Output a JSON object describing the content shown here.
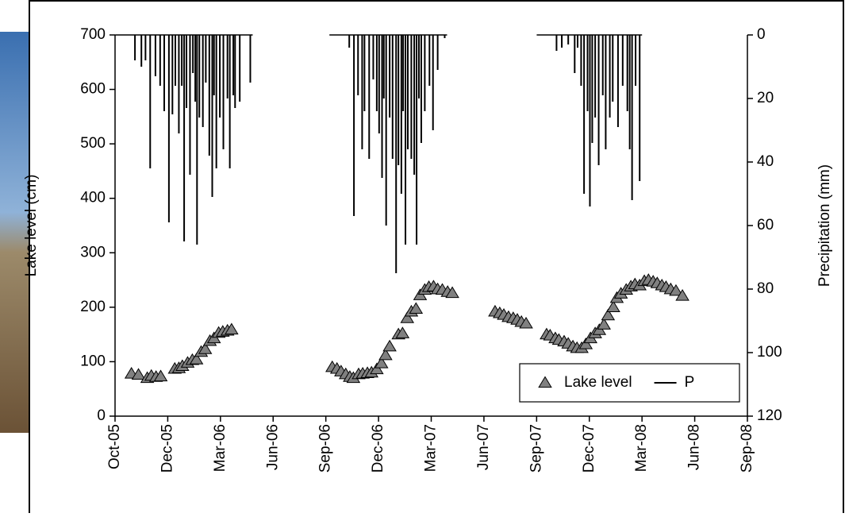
{
  "chart_data": {
    "type": "line",
    "y_label": "Lake level (cm)",
    "y2_label": "Precipitation (mm)",
    "xlim": [
      38626,
      39706
    ],
    "xticks": [
      {
        "value": 38626,
        "label": "Oct-05"
      },
      {
        "value": 38716,
        "label": "Dec-05"
      },
      {
        "value": 38806,
        "label": "Mar-06"
      },
      {
        "value": 38896,
        "label": "Jun-06"
      },
      {
        "value": 38986,
        "label": "Sep-06"
      },
      {
        "value": 39076,
        "label": "Dec-06"
      },
      {
        "value": 39166,
        "label": "Mar-07"
      },
      {
        "value": 39256,
        "label": "Jun-07"
      },
      {
        "value": 39346,
        "label": "Sep-07"
      },
      {
        "value": 39436,
        "label": "Dec-07"
      },
      {
        "value": 39526,
        "label": "Mar-08"
      },
      {
        "value": 39616,
        "label": "Jun-08"
      },
      {
        "value": 39706,
        "label": "Sep-08"
      }
    ],
    "ylim": [
      0,
      700
    ],
    "yticks": [
      0,
      100,
      200,
      300,
      400,
      500,
      600,
      700
    ],
    "y2lim": [
      120,
      0
    ],
    "y2ticks": [
      0,
      20,
      40,
      60,
      80,
      100,
      120
    ],
    "legend": "lower right",
    "series": [
      {
        "name": "Lake level",
        "type": "scatter",
        "color": "#808080",
        "x": [
          38654,
          38666,
          38681,
          38688,
          38696,
          38704,
          38728,
          38735,
          38741,
          38750,
          38758,
          38765,
          38773,
          38780,
          38788,
          38795,
          38803,
          38810,
          38818,
          38825,
          38997,
          39005,
          39012,
          39020,
          39027,
          39033,
          39042,
          39049,
          39057,
          39064,
          39073,
          39081,
          39088,
          39095,
          39110,
          39117,
          39125,
          39132,
          39140,
          39147,
          39155,
          39162,
          39170,
          39177,
          39185,
          39194,
          39202,
          39275,
          39283,
          39290,
          39298,
          39306,
          39313,
          39320,
          39328,
          39363,
          39369,
          39378,
          39384,
          39393,
          39400,
          39408,
          39415,
          39423,
          39430,
          39438,
          39446,
          39453,
          39461,
          39468,
          39477,
          39483,
          39490,
          39499,
          39507,
          39514,
          39522,
          39530,
          39537,
          39545,
          39552,
          39560,
          39567,
          39575,
          39584,
          39595
        ],
        "values": [
          78,
          76,
          70,
          74,
          72,
          73,
          87,
          88,
          92,
          98,
          103,
          104,
          118,
          123,
          138,
          143,
          153,
          155,
          157,
          159,
          90,
          87,
          82,
          77,
          72,
          70,
          77,
          78,
          79,
          80,
          86,
          97,
          112,
          128,
          150,
          152,
          180,
          192,
          197,
          222,
          232,
          237,
          238,
          233,
          232,
          228,
          226,
          192,
          189,
          186,
          182,
          180,
          177,
          173,
          170,
          150,
          148,
          143,
          140,
          137,
          133,
          128,
          125,
          125,
          132,
          143,
          152,
          158,
          168,
          185,
          200,
          217,
          225,
          232,
          238,
          242,
          240,
          248,
          250,
          247,
          244,
          240,
          237,
          233,
          230,
          221
        ]
      },
      {
        "name": "P",
        "type": "spikes",
        "axis": "y2",
        "color": "#000000",
        "x": [
          38660,
          38671,
          38678,
          38686,
          38695,
          38703,
          38710,
          38718,
          38724,
          38729,
          38735,
          38740,
          38744,
          38748,
          38754,
          38759,
          38763,
          38766,
          38770,
          38776,
          38781,
          38787,
          38792,
          38795,
          38799,
          38805,
          38811,
          38818,
          38822,
          38828,
          38831,
          38839,
          38857,
          39026,
          39034,
          39041,
          39048,
          39052,
          39060,
          39067,
          39073,
          39077,
          39082,
          39085,
          39089,
          39095,
          39100,
          39106,
          39110,
          39115,
          39118,
          39122,
          39126,
          39132,
          39137,
          39141,
          39145,
          39149,
          39155,
          39163,
          39169,
          39177,
          39189,
          39380,
          39389,
          39400,
          39411,
          39416,
          39422,
          39427,
          39433,
          39437,
          39441,
          39446,
          39452,
          39459,
          39464,
          39471,
          39476,
          39485,
          39493,
          39501,
          39505,
          39509,
          39515,
          39522
        ],
        "values": [
          8,
          10,
          8,
          42,
          13,
          16,
          24,
          59,
          25,
          16,
          31,
          16,
          65,
          23,
          44,
          12,
          21,
          66,
          26,
          29,
          15,
          38,
          51,
          19,
          42,
          26,
          36,
          20,
          42,
          19,
          23,
          21,
          15,
          4,
          57,
          19,
          36,
          24,
          39,
          14,
          24,
          31,
          45,
          20,
          60,
          26,
          39,
          75,
          41,
          50,
          24,
          66,
          36,
          39,
          44,
          66,
          20,
          34,
          24,
          16,
          30,
          11,
          1,
          5,
          4,
          3,
          12,
          4,
          16,
          50,
          24,
          54,
          34,
          26,
          41,
          19,
          36,
          26,
          21,
          29,
          16,
          24,
          36,
          52,
          16,
          46
        ]
      }
    ]
  }
}
